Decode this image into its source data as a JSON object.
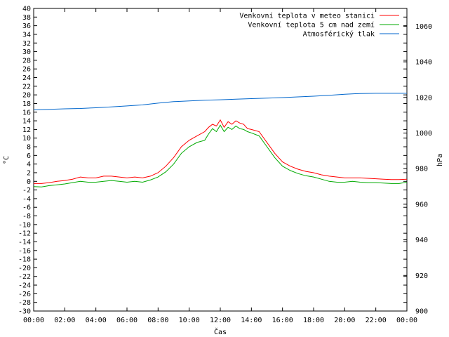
{
  "chart_data": {
    "type": "line",
    "x_tick_labels": [
      "00:00",
      "02:00",
      "04:00",
      "06:00",
      "08:00",
      "10:00",
      "12:00",
      "14:00",
      "16:00",
      "18:00",
      "20:00",
      "22:00",
      "00:00"
    ],
    "x_range_hours": [
      0,
      24
    ],
    "xlabel": "Čas",
    "ylabel_left": "°C",
    "ylabel_right": "hPa",
    "ylim_left": [
      -30,
      40
    ],
    "ylim_right": [
      900,
      1070
    ],
    "y_left_tick_step": 2,
    "y_right_ticks": [
      900,
      920,
      940,
      960,
      980,
      1000,
      1020,
      1040,
      1060
    ],
    "grid": false,
    "legend_position": "top-right",
    "series": [
      {
        "name": "Venkovní teplota v meteo stanici",
        "axis": "left",
        "color": "#ff0000",
        "x": [
          0,
          0.5,
          1,
          1.5,
          2,
          2.5,
          3,
          3.5,
          4,
          4.5,
          5,
          5.5,
          6,
          6.5,
          7,
          7.5,
          8,
          8.5,
          9,
          9.5,
          10,
          10.5,
          11,
          11.25,
          11.5,
          11.75,
          12,
          12.25,
          12.5,
          12.75,
          13,
          13.25,
          13.5,
          13.75,
          14,
          14.5,
          15,
          15.5,
          16,
          16.5,
          17,
          17.5,
          18,
          18.5,
          19,
          19.5,
          20,
          20.5,
          21,
          21.5,
          22,
          22.5,
          23,
          23.5,
          24
        ],
        "values": [
          -0.5,
          -0.5,
          -0.3,
          0,
          0.2,
          0.5,
          1,
          0.8,
          0.8,
          1.2,
          1.2,
          1,
          0.8,
          1,
          0.8,
          1.2,
          2,
          3.5,
          5.5,
          8,
          9.5,
          10.5,
          11.5,
          12.5,
          13.2,
          12.8,
          14.2,
          12.5,
          13.8,
          13.2,
          14,
          13.5,
          13.2,
          12.2,
          12,
          11.5,
          9,
          6.5,
          4.5,
          3.5,
          2.8,
          2.3,
          2,
          1.5,
          1.2,
          1,
          0.8,
          0.8,
          0.8,
          0.7,
          0.6,
          0.5,
          0.4,
          0.4,
          0.5
        ]
      },
      {
        "name": "Venkovní teplota 5 cm nad zemí",
        "axis": "left",
        "color": "#00aa00",
        "x": [
          0,
          0.5,
          1,
          1.5,
          2,
          2.5,
          3,
          3.5,
          4,
          4.5,
          5,
          5.5,
          6,
          6.5,
          7,
          7.5,
          8,
          8.5,
          9,
          9.5,
          10,
          10.5,
          11,
          11.25,
          11.5,
          11.75,
          12,
          12.25,
          12.5,
          12.75,
          13,
          13.25,
          13.5,
          13.75,
          14,
          14.5,
          15,
          15.5,
          16,
          16.5,
          17,
          17.5,
          18,
          18.5,
          19,
          19.5,
          20,
          20.5,
          21,
          21.5,
          22,
          22.5,
          23,
          23.5,
          24
        ],
        "values": [
          -1.2,
          -1.3,
          -1,
          -0.8,
          -0.6,
          -0.3,
          0,
          -0.2,
          -0.2,
          0,
          0.2,
          0,
          -0.2,
          0,
          -0.2,
          0.3,
          1,
          2.2,
          4,
          6.5,
          8,
          9,
          9.5,
          11,
          12.2,
          11.5,
          13,
          11.5,
          12.5,
          12,
          12.8,
          12.2,
          12,
          11.5,
          11.2,
          10.5,
          8,
          5.5,
          3.5,
          2.5,
          1.8,
          1.3,
          1,
          0.5,
          0,
          -0.2,
          -0.2,
          0,
          -0.2,
          -0.3,
          -0.3,
          -0.4,
          -0.5,
          -0.5,
          -0.2
        ]
      },
      {
        "name": "Atmosférický tlak",
        "axis": "right",
        "color": "#0066cc",
        "x": [
          0,
          1,
          2,
          3,
          4,
          5,
          6,
          7,
          8,
          9,
          10,
          11,
          12,
          13,
          14,
          15,
          16,
          17,
          18,
          19,
          20,
          21,
          22,
          23,
          24
        ],
        "values": [
          1013,
          1013.3,
          1013.6,
          1013.8,
          1014.2,
          1014.7,
          1015.2,
          1015.8,
          1016.8,
          1017.6,
          1018,
          1018.4,
          1018.7,
          1019,
          1019.3,
          1019.6,
          1019.9,
          1020.3,
          1020.7,
          1021.2,
          1021.8,
          1022.2,
          1022.3,
          1022.3,
          1022.3
        ]
      }
    ]
  }
}
